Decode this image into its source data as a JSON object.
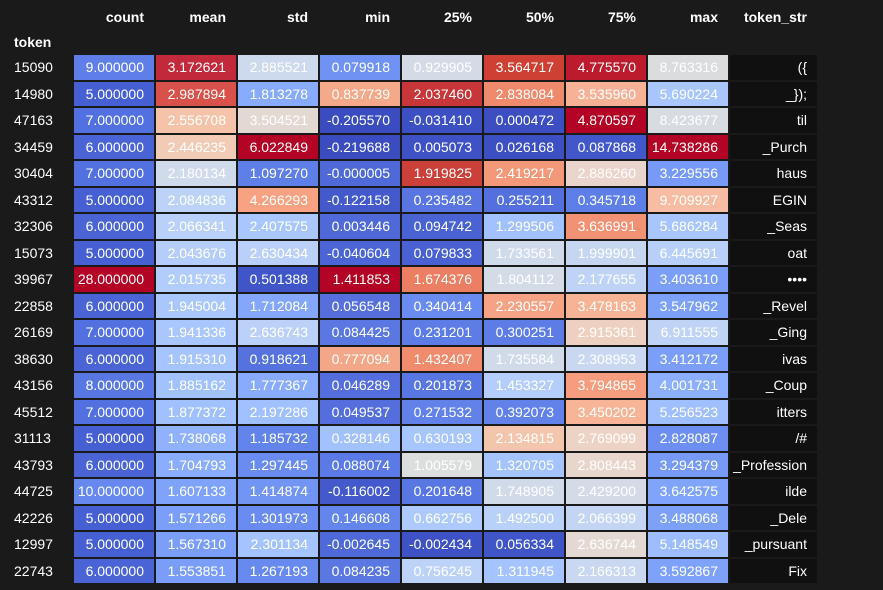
{
  "table": {
    "index_name": "token",
    "columns": [
      "count",
      "mean",
      "std",
      "min",
      "25%",
      "50%",
      "75%",
      "max",
      "token_str"
    ],
    "rows": [
      {
        "token": "15090",
        "values": [
          "9.000000",
          "3.172621",
          "2.885521",
          "0.079918",
          "0.929905",
          "3.564717",
          "4.775570",
          "8.763316"
        ],
        "token_str": "({",
        "colors": [
          "#5f7ee8",
          "#c22a3b",
          "#cdd9ec",
          "#6f92f3",
          "#d5dbe6",
          "#cf4034",
          "#bb1b2c",
          "#dbdcde"
        ]
      },
      {
        "token": "14980",
        "values": [
          "5.000000",
          "2.987894",
          "1.813278",
          "0.837739",
          "2.037460",
          "2.838084",
          "3.535960",
          "5.690224"
        ],
        "token_str": "_});",
        "colors": [
          "#4660d3",
          "#d8514a",
          "#88abfd",
          "#f4a98a",
          "#c73639",
          "#f08a6d",
          "#f6b197",
          "#a8c5fe"
        ]
      },
      {
        "token": "47163",
        "values": [
          "7.000000",
          "2.556708",
          "3.504521",
          "-0.205570",
          "-0.031410",
          "0.000472",
          "4.870597",
          "8.423677"
        ],
        "token_str": "til",
        "colors": [
          "#5270e0",
          "#f5c2aa",
          "#e3d9d3",
          "#3b4cc0",
          "#3d50c3",
          "#3c4ec2",
          "#b40426",
          "#d7dce3"
        ]
      },
      {
        "token": "34459",
        "values": [
          "6.000000",
          "2.446235",
          "6.022849",
          "-0.219688",
          "0.005073",
          "0.026168",
          "0.087868",
          "14.738286"
        ],
        "token_str": "_Purch",
        "colors": [
          "#4a64d6",
          "#f2cbb7",
          "#b40426",
          "#3b4cc0",
          "#3e51c5",
          "#3d50c3",
          "#4257c9",
          "#b40426"
        ]
      },
      {
        "token": "30404",
        "values": [
          "7.000000",
          "2.180134",
          "1.097270",
          "-0.000005",
          "1.919825",
          "2.419217",
          "2.886260",
          "3.229556"
        ],
        "token_str": "haus",
        "colors": [
          "#5270e0",
          "#cfdaea",
          "#5f7fe8",
          "#4f69d9",
          "#cc403a",
          "#f4987a",
          "#e9d5cb",
          "#7799f8"
        ]
      },
      {
        "token": "43312",
        "values": [
          "5.000000",
          "2.084836",
          "4.266293",
          "-0.122158",
          "0.235482",
          "0.255211",
          "0.345718",
          "9.709927"
        ],
        "token_str": "EGIN",
        "colors": [
          "#4660d3",
          "#bcd2f7",
          "#f6a283",
          "#445acc",
          "#5875e1",
          "#5470de",
          "#5f7fe8",
          "#f7bca1"
        ]
      },
      {
        "token": "32306",
        "values": [
          "6.000000",
          "2.066341",
          "2.407575",
          "0.003446",
          "0.094742",
          "1.299506",
          "3.636991",
          "5.686284"
        ],
        "token_str": "_Seas",
        "colors": [
          "#4a64d6",
          "#b9d0f9",
          "#aac7fd",
          "#4f69d9",
          "#4a63d3",
          "#a2c1ff",
          "#f29274",
          "#a8c5fe"
        ]
      },
      {
        "token": "15073",
        "values": [
          "5.000000",
          "2.043676",
          "2.630434",
          "-0.040604",
          "0.079833",
          "1.733561",
          "1.999901",
          "6.445691"
        ],
        "token_str": "oat",
        "colors": [
          "#4660d3",
          "#b5cdfa",
          "#bad0f8",
          "#4b65d7",
          "#4961d2",
          "#cfdaea",
          "#c6d6f1",
          "#b7cff9"
        ]
      },
      {
        "token": "39967",
        "values": [
          "28.000000",
          "2.015735",
          "0.501388",
          "1.411853",
          "1.674376",
          "1.804112",
          "2.177655",
          "3.403610"
        ],
        "token_str": "••••",
        "colors": [
          "#b40426",
          "#b2ccfb",
          "#4055c8",
          "#b40426",
          "#ec7f63",
          "#d3dbe7",
          "#bfd3f6",
          "#7b9ff9"
        ]
      },
      {
        "token": "22858",
        "values": [
          "6.000000",
          "1.945004",
          "1.712084",
          "0.056548",
          "0.340414",
          "2.230557",
          "3.478163",
          "3.547962"
        ],
        "token_str": "_Revel",
        "colors": [
          "#4a64d6",
          "#aac7fd",
          "#84a7fc",
          "#566fdc",
          "#6a8bef",
          "#f6a385",
          "#f7b396",
          "#7da0f9"
        ]
      },
      {
        "token": "26169",
        "values": [
          "7.000000",
          "1.941336",
          "2.636743",
          "0.084425",
          "0.231201",
          "0.300251",
          "2.915361",
          "6.911555"
        ],
        "token_str": "_Ging",
        "colors": [
          "#5270e0",
          "#a9c6fd",
          "#bbd1f8",
          "#5a77e2",
          "#5d7ce6",
          "#5d7ce6",
          "#eed0c0",
          "#bfd3f6"
        ]
      },
      {
        "token": "38630",
        "values": [
          "6.000000",
          "1.915310",
          "0.918621",
          "0.777094",
          "1.432407",
          "1.735584",
          "2.308953",
          "3.412172"
        ],
        "token_str": "ivas",
        "colors": [
          "#4a64d6",
          "#a6c4fe",
          "#5572df",
          "#f4a688",
          "#f08b6e",
          "#d0dae9",
          "#c9d7f0",
          "#7b9ff9"
        ]
      },
      {
        "token": "43156",
        "values": [
          "8.000000",
          "1.885162",
          "1.777367",
          "0.046289",
          "0.201873",
          "1.453327",
          "3.794865",
          "4.001731"
        ],
        "token_str": "_Coup",
        "colors": [
          "#5977e3",
          "#a2c1ff",
          "#88abfd",
          "#546edd",
          "#5977e3",
          "#b5cdfa",
          "#f59d7e",
          "#8caffe"
        ]
      },
      {
        "token": "45512",
        "values": [
          "7.000000",
          "1.877372",
          "2.197286",
          "0.049537",
          "0.271532",
          "0.392073",
          "3.450202",
          "5.256523"
        ],
        "token_str": "itters",
        "colors": [
          "#5270e0",
          "#a1c0ff",
          "#a1c0ff",
          "#546edd",
          "#6282ea",
          "#6282ea",
          "#f7b497",
          "#9fbfff"
        ]
      },
      {
        "token": "31113",
        "values": [
          "5.000000",
          "1.738068",
          "1.185732",
          "0.328146",
          "0.630193",
          "2.134815",
          "2.769099",
          "2.828087"
        ],
        "token_str": "/#",
        "colors": [
          "#4660d3",
          "#8fb1fe",
          "#6384eb",
          "#a2c1ff",
          "#a7c5fe",
          "#f4c5ad",
          "#ecd3c5",
          "#6c8ff1"
        ]
      },
      {
        "token": "43793",
        "values": [
          "6.000000",
          "1.704793",
          "1.297445",
          "0.088074",
          "1.005579",
          "1.320705",
          "2.808443",
          "3.294379"
        ],
        "token_str": "_Profession",
        "colors": [
          "#4a64d6",
          "#8badfd",
          "#6a8bef",
          "#5b7ae5",
          "#dcdddd",
          "#a5c3fe",
          "#e8d6cc",
          "#779af7"
        ]
      },
      {
        "token": "44725",
        "values": [
          "10.000000",
          "1.607133",
          "1.414874",
          "-0.116002",
          "0.201648",
          "1.748905",
          "2.429200",
          "3.642575"
        ],
        "token_str": "ilde",
        "colors": [
          "#6788ee",
          "#80a3fa",
          "#7295f4",
          "#445acc",
          "#5977e3",
          "#d1dae9",
          "#d5dbe6",
          "#81a4fb"
        ]
      },
      {
        "token": "42226",
        "values": [
          "5.000000",
          "1.571266",
          "1.301973",
          "0.146608",
          "0.662756",
          "1.492500",
          "2.066399",
          "3.488068"
        ],
        "token_str": "_Dele",
        "colors": [
          "#4660d3",
          "#7b9ff9",
          "#6a8bef",
          "#6485ec",
          "#aec9fc",
          "#b9d0f9",
          "#c4d5f3",
          "#7da0f9"
        ]
      },
      {
        "token": "12997",
        "values": [
          "5.000000",
          "1.567310",
          "2.301134",
          "-0.002645",
          "-0.002434",
          "0.056334",
          "2.636744",
          "5.148549"
        ],
        "token_str": "_pursuant",
        "colors": [
          "#4660d3",
          "#7b9ff9",
          "#a5c3fe",
          "#4f69d9",
          "#3e51c5",
          "#4055c8",
          "#e4d9d2",
          "#9dbdff"
        ]
      },
      {
        "token": "22743",
        "values": [
          "6.000000",
          "1.553851",
          "1.267193",
          "0.084235",
          "0.756245",
          "1.311945",
          "2.166313",
          "3.592867"
        ],
        "token_str": "Fix",
        "colors": [
          "#4a64d6",
          "#7a9df8",
          "#688aef",
          "#5a77e2",
          "#bcd2f7",
          "#a5c3fe",
          "#c9d7f0",
          "#7ea1fa"
        ]
      }
    ]
  }
}
